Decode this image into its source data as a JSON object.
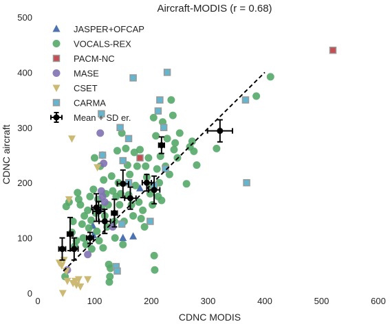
{
  "chart_data": {
    "type": "scatter",
    "title": "Aircraft-MODIS (r = 0.68)",
    "xlabel": "CDNC MODIS",
    "ylabel": "CDNC aircraft",
    "xlim": [
      0,
      600
    ],
    "ylim": [
      0,
      500
    ],
    "xticks": [
      "0",
      "100",
      "200",
      "300",
      "400",
      "500",
      "600"
    ],
    "yticks": [
      "0",
      "100",
      "200",
      "300",
      "400",
      "500"
    ],
    "grid": false,
    "legend_position": "top-left",
    "reference_line": {
      "from": [
        45,
        40
      ],
      "to": [
        400,
        400
      ],
      "style": "dashed"
    },
    "series": [
      {
        "name": "JASPER+OFCAP",
        "marker": "triangle-up",
        "color": "#4c72b0",
        "points": [
          [
            98,
            105
          ],
          [
            97,
            122
          ],
          [
            180,
            190
          ],
          [
            150,
            100
          ],
          [
            168,
            103
          ]
        ]
      },
      {
        "name": "VOCALS-REX",
        "marker": "circle",
        "color": "#55a868",
        "points": [
          [
            48,
            30
          ],
          [
            50,
            157
          ],
          [
            55,
            165
          ],
          [
            60,
            110
          ],
          [
            62,
            130
          ],
          [
            65,
            85
          ],
          [
            68,
            95
          ],
          [
            70,
            182
          ],
          [
            72,
            170
          ],
          [
            75,
            160
          ],
          [
            78,
            125
          ],
          [
            80,
            100
          ],
          [
            82,
            140
          ],
          [
            85,
            88
          ],
          [
            88,
            150
          ],
          [
            90,
            118
          ],
          [
            92,
            175
          ],
          [
            94,
            132
          ],
          [
            95,
            80
          ],
          [
            98,
            188
          ],
          [
            100,
            245
          ],
          [
            102,
            145
          ],
          [
            104,
            112
          ],
          [
            106,
            170
          ],
          [
            108,
            95
          ],
          [
            110,
            230
          ],
          [
            112,
            155
          ],
          [
            114,
            250
          ],
          [
            115,
            82
          ],
          [
            116,
            205
          ],
          [
            118,
            140
          ],
          [
            120,
            180
          ],
          [
            122,
            120
          ],
          [
            124,
            160
          ],
          [
            125,
            52
          ],
          [
            126,
            20
          ],
          [
            127,
            30
          ],
          [
            128,
            45
          ],
          [
            130,
            212
          ],
          [
            132,
            185
          ],
          [
            135,
            130
          ],
          [
            136,
            100
          ],
          [
            138,
            175
          ],
          [
            140,
            258
          ],
          [
            142,
            200
          ],
          [
            144,
            160
          ],
          [
            146,
            180
          ],
          [
            148,
            290
          ],
          [
            150,
            88
          ],
          [
            152,
            130
          ],
          [
            155,
            262
          ],
          [
            158,
            232
          ],
          [
            160,
            178
          ],
          [
            162,
            215
          ],
          [
            165,
            160
          ],
          [
            168,
            140
          ],
          [
            170,
            255
          ],
          [
            172,
            195
          ],
          [
            175,
            230
          ],
          [
            178,
            165
          ],
          [
            180,
            260
          ],
          [
            182,
            135
          ],
          [
            185,
            150
          ],
          [
            188,
            120
          ],
          [
            190,
            230
          ],
          [
            192,
            210
          ],
          [
            195,
            245
          ],
          [
            198,
            180
          ],
          [
            200,
            195
          ],
          [
            202,
            160
          ],
          [
            204,
            318
          ],
          [
            205,
            68
          ],
          [
            206,
            42
          ],
          [
            208,
            285
          ],
          [
            210,
            225
          ],
          [
            212,
            175
          ],
          [
            214,
            200
          ],
          [
            216,
            248
          ],
          [
            218,
            168
          ],
          [
            220,
            310
          ],
          [
            225,
            230
          ],
          [
            228,
            280
          ],
          [
            232,
            215
          ],
          [
            235,
            350
          ],
          [
            238,
            322
          ],
          [
            240,
            260
          ],
          [
            242,
            272
          ],
          [
            246,
            245
          ],
          [
            250,
            290
          ],
          [
            262,
            198
          ],
          [
            268,
            265
          ],
          [
            272,
            275
          ],
          [
            275,
            257
          ],
          [
            280,
            232
          ],
          [
            315,
            262
          ],
          [
            385,
            357
          ],
          [
            410,
            392
          ]
        ]
      },
      {
        "name": "PACM-NC",
        "marker": "square",
        "color": "#c44e52",
        "points": [
          [
            180,
            245
          ],
          [
            520,
            440
          ]
        ]
      },
      {
        "name": "MASE",
        "marker": "circle",
        "color": "#8172b2",
        "points": [
          [
            52,
            42
          ],
          [
            88,
            70
          ],
          [
            108,
            150
          ],
          [
            110,
            290
          ],
          [
            112,
            185
          ],
          [
            114,
            175
          ],
          [
            116,
            235
          ],
          [
            118,
            165
          ],
          [
            132,
            120
          ]
        ]
      },
      {
        "name": "CSET",
        "marker": "triangle-down",
        "color": "#ccb974",
        "points": [
          [
            38,
            55
          ],
          [
            42,
            50
          ],
          [
            46,
            60
          ],
          [
            50,
            40
          ],
          [
            52,
            22
          ],
          [
            55,
            170
          ],
          [
            60,
            280
          ],
          [
            62,
            18
          ],
          [
            66,
            22
          ],
          [
            68,
            15
          ],
          [
            72,
            25
          ],
          [
            75,
            12
          ],
          [
            88,
            25
          ],
          [
            105,
            228
          ],
          [
            44,
            0
          ]
        ]
      },
      {
        "name": "CARMA",
        "marker": "square",
        "color": "#64b5cd",
        "points": [
          [
            112,
            325
          ],
          [
            114,
            250
          ],
          [
            138,
            48
          ],
          [
            140,
            40
          ],
          [
            145,
            300
          ],
          [
            148,
            125
          ],
          [
            150,
            240
          ],
          [
            160,
            200
          ],
          [
            160,
            280
          ],
          [
            168,
            390
          ],
          [
            198,
            130
          ],
          [
            205,
            195
          ],
          [
            212,
            330
          ],
          [
            215,
            350
          ],
          [
            222,
            300
          ],
          [
            228,
            400
          ],
          [
            366,
            350
          ],
          [
            368,
            200
          ],
          [
            225,
            225
          ]
        ]
      }
    ],
    "mean_sd": {
      "name": "Mean + SD er.",
      "marker": "circle",
      "color": "#000000",
      "points": [
        {
          "x": 43,
          "y": 80,
          "xerr": 6,
          "yerr": 20
        },
        {
          "x": 57,
          "y": 107,
          "xerr": 5,
          "yerr": 30
        },
        {
          "x": 64,
          "y": 80,
          "xerr": 7,
          "yerr": 20
        },
        {
          "x": 92,
          "y": 100,
          "xerr": 6,
          "yerr": 10
        },
        {
          "x": 103,
          "y": 155,
          "xerr": 8,
          "yerr": 25
        },
        {
          "x": 107,
          "y": 148,
          "xerr": 10,
          "yerr": 18
        },
        {
          "x": 118,
          "y": 130,
          "xerr": 10,
          "yerr": 22
        },
        {
          "x": 135,
          "y": 145,
          "xerr": 5,
          "yerr": 25
        },
        {
          "x": 150,
          "y": 198,
          "xerr": 10,
          "yerr": 25
        },
        {
          "x": 163,
          "y": 172,
          "xerr": 10,
          "yerr": 20
        },
        {
          "x": 192,
          "y": 200,
          "xerr": 8,
          "yerr": 15
        },
        {
          "x": 205,
          "y": 187,
          "xerr": 10,
          "yerr": 25
        },
        {
          "x": 218,
          "y": 268,
          "xerr": 5,
          "yerr": 15
        },
        {
          "x": 321,
          "y": 294,
          "xerr": 22,
          "yerr": 20
        }
      ]
    }
  }
}
